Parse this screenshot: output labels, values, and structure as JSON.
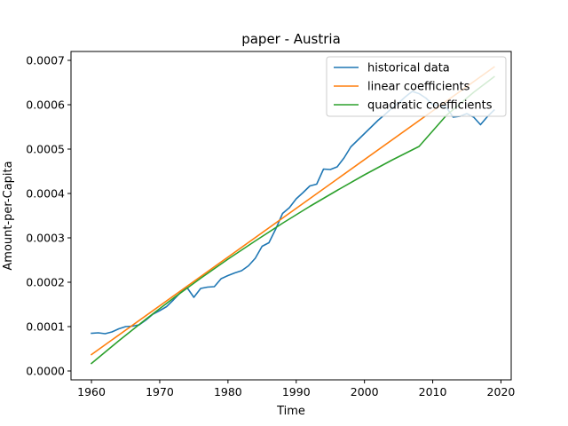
{
  "chart_data": {
    "type": "line",
    "title": "paper - Austria",
    "xlabel": "Time",
    "ylabel": "Amount-per-Capita",
    "xlim": [
      1957,
      2021.5
    ],
    "ylim": [
      -2e-05,
      0.00072
    ],
    "xticks": [
      1960,
      1970,
      1980,
      1990,
      2000,
      2010,
      2020
    ],
    "xtick_labels": [
      "1960",
      "1970",
      "1980",
      "1990",
      "2000",
      "2010",
      "2020"
    ],
    "yticks": [
      0.0,
      0.0001,
      0.0002,
      0.0003,
      0.0004,
      0.0005,
      0.0006,
      0.0007
    ],
    "ytick_labels": [
      "0.0000",
      "0.0001",
      "0.0002",
      "0.0003",
      "0.0004",
      "0.0005",
      "0.0006",
      "0.0007"
    ],
    "grid": false,
    "legend_position": "top-right",
    "series": [
      {
        "name": "historical data",
        "color": "#1f77b4",
        "x": [
          1960,
          1961,
          1962,
          1963,
          1964,
          1965,
          1966,
          1967,
          1968,
          1969,
          1970,
          1971,
          1972,
          1973,
          1974,
          1975,
          1976,
          1977,
          1978,
          1979,
          1980,
          1981,
          1982,
          1983,
          1984,
          1985,
          1986,
          1987,
          1988,
          1989,
          1990,
          1991,
          1992,
          1993,
          1994,
          1995,
          1996,
          1997,
          1998,
          1999,
          2000,
          2001,
          2002,
          2003,
          2004,
          2005,
          2006,
          2007,
          2008,
          2009,
          2010,
          2011,
          2012,
          2013,
          2014,
          2015,
          2016,
          2017,
          2018,
          2019
        ],
        "y": [
          8.5e-05,
          8.6e-05,
          8.4e-05,
          8.8e-05,
          9.5e-05,
          0.0001,
          0.000101,
          0.000104,
          0.000115,
          0.000128,
          0.000136,
          0.000145,
          0.00016,
          0.000176,
          0.000188,
          0.000166,
          0.000186,
          0.000189,
          0.00019,
          0.000208,
          0.000215,
          0.000221,
          0.000226,
          0.000237,
          0.000254,
          0.000281,
          0.000289,
          0.00032,
          0.000355,
          0.000368,
          0.000388,
          0.000402,
          0.000417,
          0.000421,
          0.000455,
          0.000454,
          0.00046,
          0.00048,
          0.000505,
          0.00052,
          0.000535,
          0.00055,
          0.000565,
          0.000578,
          0.000592,
          0.000604,
          0.000618,
          0.00063,
          0.000625,
          0.000615,
          0.0006,
          0.000598,
          0.000594,
          0.000572,
          0.000574,
          0.00058,
          0.000572,
          0.000555,
          0.000573,
          0.000588
        ]
      },
      {
        "name": "linear coefficients",
        "color": "#ff7f0e",
        "x": [
          1960,
          2019
        ],
        "y": [
          3.7e-05,
          0.000685
        ]
      },
      {
        "name": "quadratic coefficients",
        "color": "#2ca02c",
        "x": [
          1960,
          1964,
          1968,
          1972,
          1976,
          1980,
          1984,
          1988,
          1992,
          1996,
          2000,
          2004,
          2008,
          2012,
          2016,
          2019
        ],
        "y": [
          1.7e-05,
          6.8e-05,
          0.000117,
          0.000164,
          0.000209,
          0.000252,
          0.000293,
          0.000333,
          0.000371,
          0.000407,
          0.000442,
          0.000475,
          0.000506,
          0.000576,
          0.000628,
          0.000663
        ]
      }
    ]
  }
}
